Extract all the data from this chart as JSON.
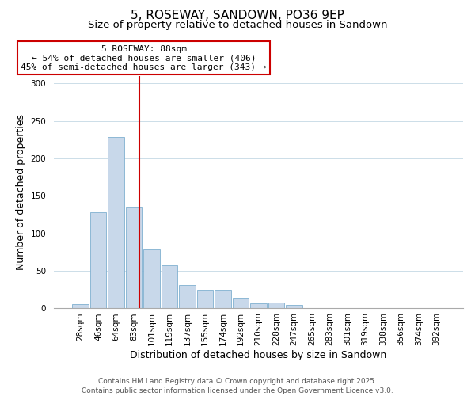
{
  "title": "5, ROSEWAY, SANDOWN, PO36 9EP",
  "subtitle": "Size of property relative to detached houses in Sandown",
  "xlabel": "Distribution of detached houses by size in Sandown",
  "ylabel": "Number of detached properties",
  "bar_labels": [
    "28sqm",
    "46sqm",
    "64sqm",
    "83sqm",
    "101sqm",
    "119sqm",
    "137sqm",
    "155sqm",
    "174sqm",
    "192sqm",
    "210sqm",
    "228sqm",
    "247sqm",
    "265sqm",
    "283sqm",
    "301sqm",
    "319sqm",
    "338sqm",
    "356sqm",
    "374sqm",
    "392sqm"
  ],
  "bar_values": [
    6,
    128,
    229,
    136,
    79,
    57,
    31,
    25,
    25,
    14,
    7,
    8,
    5,
    1,
    0,
    0,
    0,
    0,
    0,
    0,
    0
  ],
  "bar_color": "#c8d8ea",
  "bar_edge_color": "#7fb0d0",
  "vline_color": "#cc0000",
  "annotation_title": "5 ROSEWAY: 88sqm",
  "annotation_line1": "← 54% of detached houses are smaller (406)",
  "annotation_line2": "45% of semi-detached houses are larger (343) →",
  "annotation_box_color": "#ffffff",
  "annotation_box_edge": "#cc0000",
  "ylim": [
    0,
    310
  ],
  "footer1": "Contains HM Land Registry data © Crown copyright and database right 2025.",
  "footer2": "Contains public sector information licensed under the Open Government Licence v3.0.",
  "title_fontsize": 11,
  "subtitle_fontsize": 9.5,
  "axis_label_fontsize": 9,
  "tick_fontsize": 7.5,
  "annotation_fontsize": 8,
  "footer_fontsize": 6.5
}
